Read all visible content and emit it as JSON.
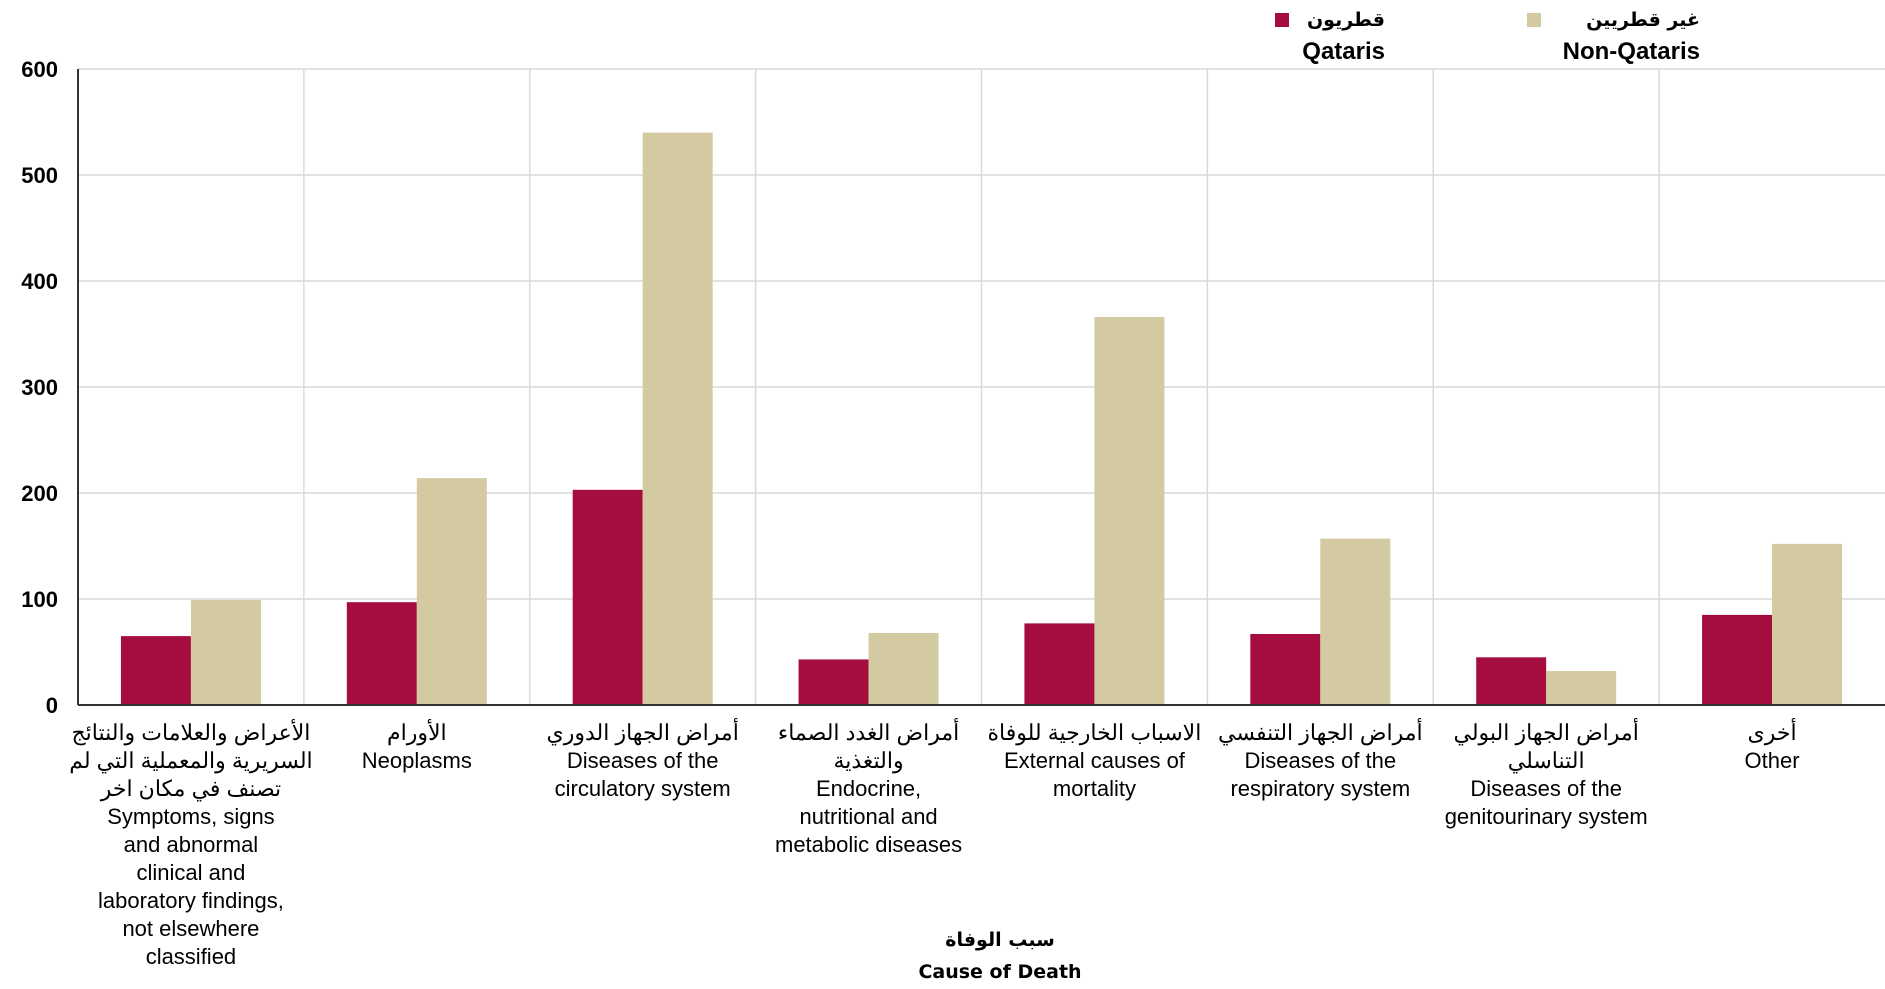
{
  "chart_data": {
    "type": "bar",
    "ylim": [
      0,
      600
    ],
    "yticks": [
      0,
      100,
      200,
      300,
      400,
      500,
      600
    ],
    "grid": true,
    "legend_position": "top-right",
    "xlabel": [
      "سبب الوفاة",
      "Cause of Death"
    ],
    "categories": [
      [
        "الأعراض والعلامات والنتائج",
        "السريرية  والمعملية التي لم",
        "تصنف في مكان اخر",
        "Symptoms, signs",
        "and abnormal",
        "clinical and",
        "laboratory findings,",
        "not elsewhere",
        "classified"
      ],
      [
        "الأورام",
        "Neoplasms"
      ],
      [
        "أمراض الجهاز الدوري",
        "Diseases of the",
        "circulatory system"
      ],
      [
        "أمراض الغدد الصماء",
        "والتغذية",
        "Endocrine,",
        "nutritional and",
        "metabolic diseases"
      ],
      [
        "الاسباب الخارجية  للوفاة",
        "External causes of",
        "mortality"
      ],
      [
        "أمراض الجهاز التنفسي",
        "Diseases of the",
        "respiratory system"
      ],
      [
        "أمراض الجهاز البولي",
        "التناسلي",
        "Diseases of the",
        "genitourinary system"
      ],
      [
        "أخرى",
        "Other"
      ]
    ],
    "series": [
      {
        "name": "Qataris",
        "name_ar": "قطريون",
        "color": "#a50d3f",
        "values": [
          65,
          97,
          203,
          43,
          77,
          67,
          45,
          85
        ]
      },
      {
        "name": "Non-Qataris",
        "name_ar": "غير قطريين",
        "color": "#d3caa2",
        "values": [
          99,
          214,
          540,
          68,
          366,
          157,
          32,
          152
        ]
      }
    ]
  }
}
